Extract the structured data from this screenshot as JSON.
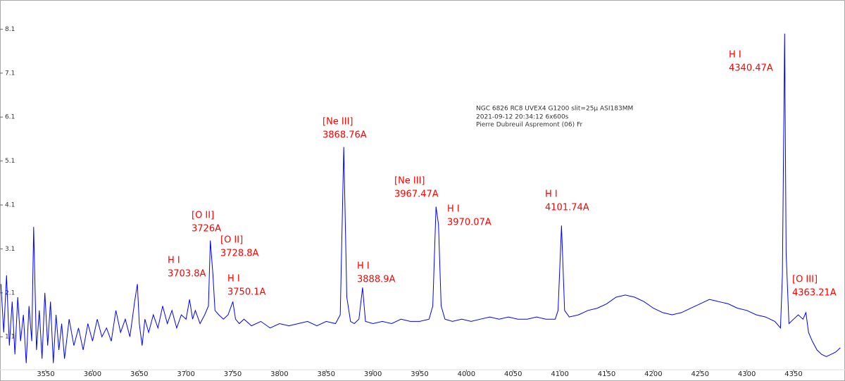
{
  "chart_data": {
    "type": "line",
    "info_lines": [
      "NGC 6826    RC8 UVEX4 G1200 slit=25µ    ASI183MM",
      "2021-09-12 20:34:12     6x600s",
      "Pierre Dubreuil Aspremont (06) Fr"
    ],
    "annotations": [
      {
        "species": "H I",
        "line": "3703.8A"
      },
      {
        "species": "[O II]",
        "line": "3726A"
      },
      {
        "species": "[O II]",
        "line": "3728.8A"
      },
      {
        "species": "H I",
        "line": "3750.1A"
      },
      {
        "species": "[Ne III]",
        "line": "3868.76A"
      },
      {
        "species": "H I",
        "line": "3888.9A"
      },
      {
        "species": "[Ne III]",
        "line": "3967.47A"
      },
      {
        "species": "H I",
        "line": "3970.07A"
      },
      {
        "species": "H I",
        "line": "4101.74A"
      },
      {
        "species": "H I",
        "line": "4340.47A"
      },
      {
        "species": "[O III]",
        "line": "4363.21A"
      }
    ],
    "annotation_color": "#ff0000",
    "xlim": [
      3501,
      4405
    ],
    "ylim": [
      0.35,
      8.7
    ],
    "xticks": [
      3550,
      3600,
      3650,
      3700,
      3750,
      3800,
      3850,
      3900,
      3950,
      4000,
      4050,
      4100,
      4150,
      4200,
      4250,
      4300,
      4350
    ],
    "yticks": [
      1.1,
      2.1,
      3.1,
      4.1,
      5.1,
      6.1,
      7.1,
      8.1
    ],
    "grid": false,
    "series": [
      {
        "color": "#0000ff",
        "x": [
          3502,
          3505,
          3508,
          3511,
          3514,
          3517,
          3520,
          3523,
          3526,
          3529,
          3532,
          3535,
          3537,
          3540,
          3543,
          3546,
          3549,
          3552,
          3555,
          3558,
          3561,
          3564,
          3567,
          3570,
          3575,
          3580,
          3585,
          3590,
          3595,
          3600,
          3605,
          3610,
          3615,
          3620,
          3625,
          3630,
          3635,
          3640,
          3645,
          3648,
          3650,
          3653,
          3656,
          3660,
          3665,
          3670,
          3675,
          3680,
          3685,
          3690,
          3695,
          3700,
          3703.8,
          3707,
          3710,
          3715,
          3720,
          3724,
          3726,
          3728.8,
          3731,
          3735,
          3740,
          3745,
          3750.1,
          3753,
          3757,
          3762,
          3770,
          3780,
          3790,
          3800,
          3810,
          3820,
          3830,
          3840,
          3850,
          3860,
          3865,
          3868.76,
          3872,
          3876,
          3880,
          3885,
          3888.9,
          3892,
          3900,
          3910,
          3920,
          3930,
          3940,
          3950,
          3960,
          3964,
          3967.47,
          3970.07,
          3973,
          3977,
          3985,
          3995,
          4005,
          4015,
          4025,
          4035,
          4045,
          4055,
          4065,
          4075,
          4085,
          4095,
          4098,
          4101.74,
          4105,
          4110,
          4120,
          4130,
          4140,
          4150,
          4160,
          4170,
          4180,
          4190,
          4200,
          4210,
          4220,
          4230,
          4240,
          4250,
          4260,
          4270,
          4280,
          4290,
          4300,
          4310,
          4320,
          4330,
          4336,
          4338,
          4340.47,
          4342,
          4345,
          4350,
          4355,
          4360,
          4363.21,
          4366,
          4370,
          4375,
          4380,
          4385,
          4390,
          4395,
          4400
        ],
        "values": [
          2.3,
          1.2,
          2.5,
          0.9,
          1.9,
          0.7,
          2.0,
          1.0,
          1.6,
          0.5,
          1.8,
          1.0,
          3.6,
          0.8,
          1.7,
          0.6,
          2.1,
          0.9,
          1.9,
          0.5,
          1.6,
          0.8,
          1.4,
          0.6,
          1.5,
          0.9,
          1.3,
          0.8,
          1.4,
          1.0,
          1.5,
          1.1,
          1.3,
          1.0,
          1.7,
          1.2,
          1.5,
          1.1,
          1.9,
          2.3,
          1.4,
          0.9,
          1.5,
          1.2,
          1.6,
          1.3,
          1.8,
          1.4,
          1.7,
          1.3,
          1.6,
          1.5,
          1.95,
          1.5,
          1.7,
          1.4,
          1.6,
          1.8,
          3.29,
          2.51,
          1.7,
          1.6,
          1.5,
          1.6,
          1.9,
          1.5,
          1.4,
          1.5,
          1.35,
          1.45,
          1.3,
          1.4,
          1.35,
          1.4,
          1.45,
          1.35,
          1.45,
          1.4,
          1.6,
          5.42,
          2.0,
          1.45,
          1.4,
          1.5,
          2.22,
          1.45,
          1.4,
          1.45,
          1.4,
          1.5,
          1.45,
          1.45,
          1.5,
          1.8,
          4.06,
          3.66,
          1.8,
          1.5,
          1.45,
          1.5,
          1.45,
          1.5,
          1.55,
          1.5,
          1.55,
          1.5,
          1.5,
          1.55,
          1.5,
          1.5,
          1.7,
          3.63,
          1.7,
          1.55,
          1.6,
          1.7,
          1.75,
          1.85,
          2.0,
          2.05,
          2.0,
          1.9,
          1.75,
          1.65,
          1.6,
          1.65,
          1.75,
          1.85,
          1.95,
          1.9,
          1.85,
          1.75,
          1.7,
          1.6,
          1.55,
          1.45,
          1.3,
          2.5,
          8.0,
          3.0,
          1.4,
          1.5,
          1.6,
          1.5,
          1.65,
          1.2,
          1.0,
          0.8,
          0.7,
          0.65,
          0.7,
          0.75,
          0.85
        ]
      }
    ]
  }
}
